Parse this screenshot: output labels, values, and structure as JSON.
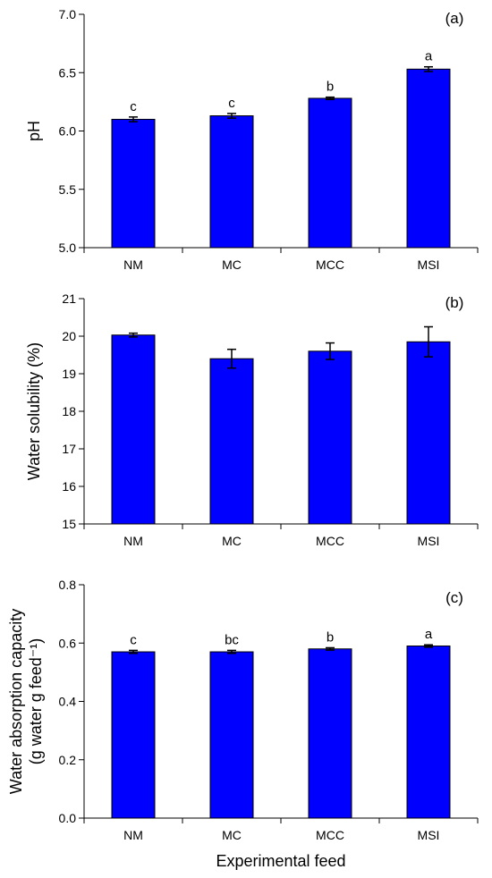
{
  "figure": {
    "xlabel": "Experimental feed"
  },
  "colors": {
    "bar_fill": "#0000ff",
    "bar_stroke": "#000000",
    "axis": "#000000"
  },
  "chart_data": [
    {
      "type": "bar",
      "panel_label": "(a)",
      "ylabel": "pH",
      "categories": [
        "NM",
        "MC",
        "MCC",
        "MSI"
      ],
      "values": [
        6.1,
        6.13,
        6.28,
        6.53
      ],
      "errors": [
        0.02,
        0.02,
        0.01,
        0.02
      ],
      "letters": [
        "c",
        "c",
        "b",
        "a"
      ],
      "ylim": [
        5.0,
        7.0
      ],
      "yticks": [
        5.0,
        5.5,
        6.0,
        6.5,
        7.0
      ],
      "ytick_labels": [
        "5.0",
        "5.5",
        "6.0",
        "6.5",
        "7.0"
      ],
      "grid": false
    },
    {
      "type": "bar",
      "panel_label": "(b)",
      "ylabel": "Water solubility (%)",
      "categories": [
        "NM",
        "MC",
        "MCC",
        "MSI"
      ],
      "values": [
        20.03,
        19.4,
        19.6,
        19.85
      ],
      "errors": [
        0.05,
        0.25,
        0.22,
        0.4
      ],
      "letters": [
        "",
        "",
        "",
        ""
      ],
      "ylim": [
        15,
        21
      ],
      "yticks": [
        15,
        16,
        17,
        18,
        19,
        20,
        21
      ],
      "ytick_labels": [
        "15",
        "16",
        "17",
        "18",
        "19",
        "20",
        "21"
      ],
      "grid": false
    },
    {
      "type": "bar",
      "panel_label": "(c)",
      "ylabel": "Water absorption capacity",
      "ylabel_line2": "(g water g feed⁻¹)",
      "categories": [
        "NM",
        "MC",
        "MCC",
        "MSI"
      ],
      "values": [
        0.57,
        0.57,
        0.58,
        0.59
      ],
      "errors": [
        0.005,
        0.005,
        0.004,
        0.004
      ],
      "letters": [
        "c",
        "bc",
        "b",
        "a"
      ],
      "ylim": [
        0.0,
        0.8
      ],
      "yticks": [
        0.0,
        0.2,
        0.4,
        0.6,
        0.8
      ],
      "ytick_labels": [
        "0.0",
        "0.2",
        "0.4",
        "0.6",
        "0.8"
      ],
      "grid": false
    }
  ]
}
